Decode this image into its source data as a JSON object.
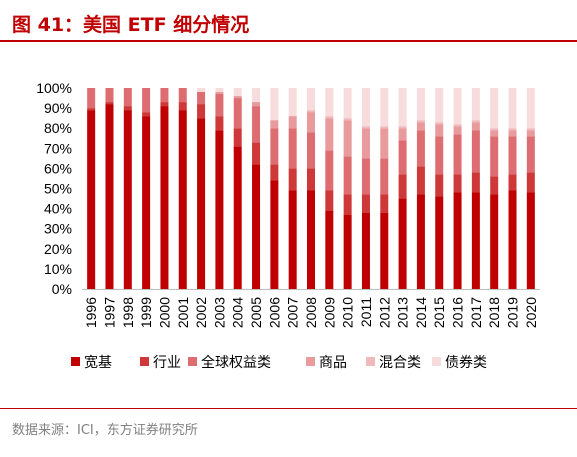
{
  "header": {
    "title": "图 41：美国 ETF 细分情况"
  },
  "footer": {
    "source": "数据来源：ICI，东方证券研究所"
  },
  "colors": {
    "accent": "#c00000",
    "series": [
      "#c00000",
      "#cf3838",
      "#dd6d71",
      "#e89a9d",
      "#f0b9bb",
      "#f8dcdd"
    ]
  },
  "chart_data": {
    "type": "bar",
    "stacked": true,
    "categories": [
      "1996",
      "1997",
      "1998",
      "1999",
      "2000",
      "2001",
      "2002",
      "2003",
      "2004",
      "2005",
      "2006",
      "2007",
      "2008",
      "2009",
      "2010",
      "2011",
      "2012",
      "2013",
      "2014",
      "2015",
      "2016",
      "2017",
      "2018",
      "2019",
      "2020"
    ],
    "y_ticks": [
      "0%",
      "10%",
      "20%",
      "30%",
      "40%",
      "50%",
      "60%",
      "70%",
      "80%",
      "90%",
      "100%"
    ],
    "ylim": [
      0,
      100
    ],
    "legend_position": "bottom",
    "series": [
      {
        "name": "宽基",
        "values": [
          89,
          92,
          89,
          86,
          91,
          89,
          85,
          79,
          71,
          62,
          54,
          49,
          49,
          39,
          37,
          38,
          38,
          45,
          47,
          46,
          48,
          48,
          47,
          49,
          48
        ]
      },
      {
        "name": "行业",
        "values": [
          1,
          1,
          2,
          2,
          2,
          4,
          7,
          7,
          9,
          11,
          8,
          11,
          11,
          10,
          10,
          9,
          9,
          12,
          14,
          11,
          9,
          10,
          9,
          8,
          10
        ]
      },
      {
        "name": "全球权益类",
        "values": [
          10,
          7,
          9,
          12,
          7,
          7,
          6,
          11,
          15,
          18,
          18,
          20,
          18,
          20,
          19,
          18,
          18,
          17,
          18,
          19,
          20,
          21,
          20,
          19,
          18
        ]
      },
      {
        "name": "商品",
        "values": [
          0,
          0,
          0,
          0,
          0,
          0,
          0,
          1,
          1,
          2,
          4,
          6,
          10,
          16,
          18,
          15,
          15,
          6,
          4,
          6,
          4,
          4,
          3,
          3,
          3
        ]
      },
      {
        "name": "混合类",
        "values": [
          0,
          0,
          0,
          0,
          0,
          0,
          0,
          0,
          0,
          0,
          0,
          0,
          1,
          1,
          1,
          1,
          1,
          1,
          1,
          1,
          1,
          1,
          1,
          1,
          1
        ]
      },
      {
        "name": "债券类",
        "values": [
          0,
          0,
          0,
          0,
          0,
          0,
          2,
          2,
          4,
          7,
          16,
          14,
          11,
          14,
          15,
          19,
          19,
          19,
          16,
          17,
          18,
          16,
          20,
          20,
          20
        ]
      }
    ]
  }
}
